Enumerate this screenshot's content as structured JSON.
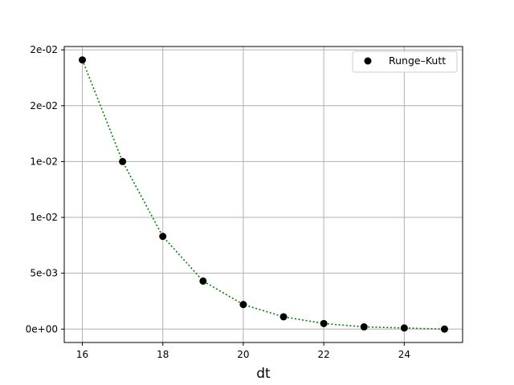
{
  "chart_data": {
    "type": "line",
    "title": "",
    "xlabel": "dt",
    "ylabel": "",
    "xlim": [
      15.55,
      25.45
    ],
    "ylim": [
      -0.0012,
      0.0253
    ],
    "x_ticks": [
      16,
      18,
      20,
      22,
      24
    ],
    "y_ticks": [
      {
        "value": 0.0,
        "label": "0e+00"
      },
      {
        "value": 0.005,
        "label": "5e-03"
      },
      {
        "value": 0.01,
        "label": "1e-02"
      },
      {
        "value": 0.015,
        "label": "1e-02"
      },
      {
        "value": 0.02,
        "label": "2e-02"
      },
      {
        "value": 0.025,
        "label": "2e-02"
      }
    ],
    "grid": true,
    "legend_position": "top-right",
    "series": [
      {
        "name": "Runge–Kutt",
        "marker_color": "#000000",
        "line_color": "#008000",
        "line_style": "dotted",
        "x": [
          16,
          17,
          18,
          19,
          20,
          21,
          22,
          23,
          24,
          25
        ],
        "y": [
          0.0241,
          0.015,
          0.0083,
          0.0043,
          0.0022,
          0.0011,
          0.0005,
          0.0002,
          0.0001,
          0.0
        ]
      }
    ]
  }
}
